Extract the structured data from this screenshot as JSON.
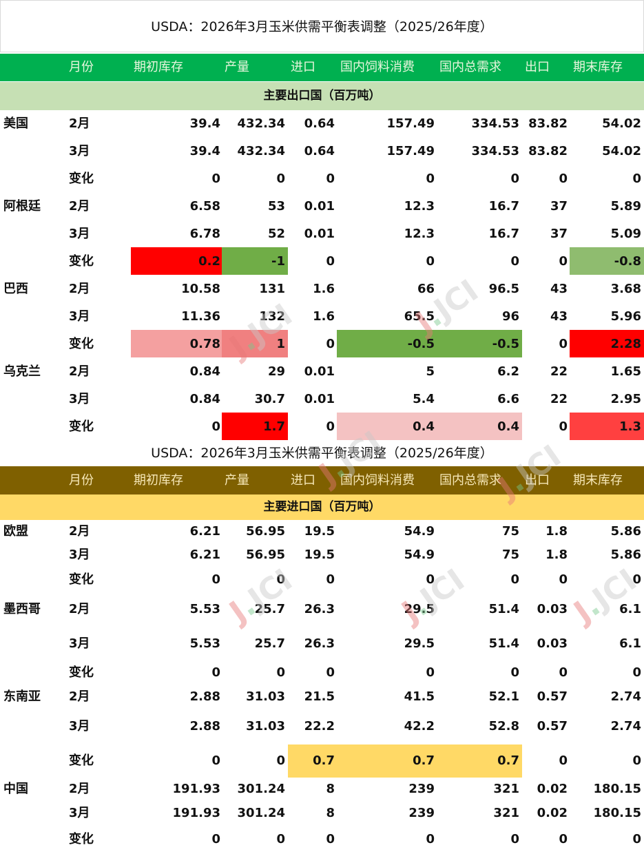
{
  "title_top": "USDA：2026年3月玉米供需平衡表调整（2025/26年度）",
  "title_mid": "USDA：2026年3月玉米供需平衡表调整（2025/26年度）",
  "headers": [
    "月份",
    "期初库存",
    "产量",
    "进口",
    "国内饲料消费",
    "国内总需求",
    "出口",
    "期末库存"
  ],
  "export_band": "主要出口国（百万吨）",
  "import_band": "主要进口国（百万吨）",
  "watermark": "JCI",
  "colors": {
    "green_header": "#00b050",
    "brown_header": "#7f6000",
    "green_band": "#c6e0b4",
    "yellow_band": "#ffd966",
    "red": "#ff0000",
    "light_red": "#f4a0a0",
    "green": "#70ad47",
    "light_green": "#8fbc6f",
    "yellow": "#ffd966"
  },
  "export_rows": [
    {
      "country": "美国",
      "month": "2月",
      "v": [
        "39.4",
        "432.34",
        "0.64",
        "157.49",
        "334.53",
        "83.82",
        "54.02"
      ]
    },
    {
      "country": "",
      "month": "3月",
      "v": [
        "39.4",
        "432.34",
        "0.64",
        "157.49",
        "334.53",
        "83.82",
        "54.02"
      ]
    },
    {
      "country": "",
      "month": "变化",
      "v": [
        "0",
        "0",
        "0",
        "0",
        "0",
        "0",
        "0"
      ]
    },
    {
      "country": "阿根廷",
      "month": "2月",
      "v": [
        "6.58",
        "53",
        "0.01",
        "12.3",
        "16.7",
        "37",
        "5.89"
      ]
    },
    {
      "country": "",
      "month": "3月",
      "v": [
        "6.78",
        "52",
        "0.01",
        "12.3",
        "16.7",
        "37",
        "5.09"
      ]
    },
    {
      "country": "",
      "month": "变化",
      "v": [
        "0.2",
        "-1",
        "0",
        "0",
        "0",
        "0",
        "-0.8"
      ]
    },
    {
      "country": "巴西",
      "month": "2月",
      "v": [
        "10.58",
        "131",
        "1.6",
        "66",
        "96.5",
        "43",
        "3.68"
      ]
    },
    {
      "country": "",
      "month": "3月",
      "v": [
        "11.36",
        "132",
        "1.6",
        "65.5",
        "96",
        "43",
        "5.96"
      ]
    },
    {
      "country": "",
      "month": "变化",
      "v": [
        "0.78",
        "1",
        "0",
        "-0.5",
        "-0.5",
        "0",
        "2.28"
      ]
    },
    {
      "country": "乌克兰",
      "month": "2月",
      "v": [
        "0.84",
        "29",
        "0.01",
        "5",
        "6.2",
        "22",
        "1.65"
      ]
    },
    {
      "country": "",
      "month": "3月",
      "v": [
        "0.84",
        "30.7",
        "0.01",
        "5.4",
        "6.6",
        "22",
        "2.95"
      ]
    },
    {
      "country": "",
      "month": "变化",
      "v": [
        "0",
        "1.7",
        "0",
        "0.4",
        "0.4",
        "0",
        "1.3"
      ]
    }
  ],
  "import_rows": [
    {
      "country": "欧盟",
      "month": "2月",
      "v": [
        "6.21",
        "56.95",
        "19.5",
        "54.9",
        "75",
        "1.8",
        "5.86"
      ]
    },
    {
      "country": "",
      "month": "3月",
      "v": [
        "6.21",
        "56.95",
        "19.5",
        "54.9",
        "75",
        "1.8",
        "5.86"
      ]
    },
    {
      "country": "",
      "month": "变化",
      "v": [
        "0",
        "0",
        "0",
        "0",
        "0",
        "0",
        "0"
      ]
    },
    {
      "country": "墨西哥",
      "month": "2月",
      "v": [
        "5.53",
        "25.7",
        "26.3",
        "29.5",
        "51.4",
        "0.03",
        "6.1"
      ]
    },
    {
      "country": "",
      "month": "3月",
      "v": [
        "5.53",
        "25.7",
        "26.3",
        "29.5",
        "51.4",
        "0.03",
        "6.1"
      ]
    },
    {
      "country": "",
      "month": "变化",
      "v": [
        "0",
        "0",
        "0",
        "0",
        "0",
        "0",
        "0"
      ]
    },
    {
      "country": "东南亚",
      "month": "2月",
      "v": [
        "2.88",
        "31.03",
        "21.5",
        "41.5",
        "52.1",
        "0.57",
        "2.74"
      ]
    },
    {
      "country": "",
      "month": "3月",
      "v": [
        "2.88",
        "31.03",
        "22.2",
        "42.2",
        "52.8",
        "0.57",
        "2.74"
      ]
    },
    {
      "country": "",
      "month": "变化",
      "v": [
        "0",
        "0",
        "0.7",
        "0.7",
        "0.7",
        "0",
        "0"
      ]
    },
    {
      "country": "中国",
      "month": "2月",
      "v": [
        "191.93",
        "301.24",
        "8",
        "239",
        "321",
        "0.02",
        "180.15"
      ]
    },
    {
      "country": "",
      "month": "3月",
      "v": [
        "191.93",
        "301.24",
        "8",
        "239",
        "321",
        "0.02",
        "180.15"
      ]
    },
    {
      "country": "",
      "month": "变化",
      "v": [
        "0",
        "0",
        "0",
        "0",
        "0",
        "0",
        "0"
      ]
    }
  ]
}
